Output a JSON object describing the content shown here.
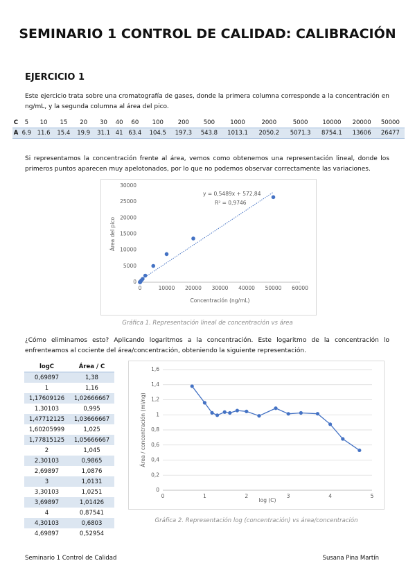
{
  "header": {
    "title": "SEMINARIO 1 CONTROL DE CALIDAD: CALIBRACIÓN"
  },
  "section": {
    "heading": "EJERCICIO 1",
    "paragraph1": "Este ejercicio trata sobre una cromatografía de gases, donde la primera columna corresponde a la concentración en ng/mL, y la segunda columna al área del pico.",
    "table1": {
      "rows": [
        [
          "C",
          "5",
          "10",
          "15",
          "20",
          "30",
          "40",
          "60",
          "100",
          "200",
          "500",
          "1000",
          "2000",
          "5000",
          "10000",
          "20000",
          "50000"
        ],
        [
          "A",
          "6.9",
          "11.6",
          "15.4",
          "19.9",
          "31.1",
          "41",
          "63.4",
          "104.5",
          "197.3",
          "543.8",
          "1013.1",
          "2050.2",
          "5071.3",
          "8754.1",
          "13606",
          "26477"
        ]
      ]
    },
    "paragraph2": "Si representamos la concentración frente al área, vemos como obtenemos una representación lineal, donde los primeros puntos aparecen muy apelotonados, por lo que no podemos observar correctamente las variaciones.",
    "caption1": "Gráfica 1. Representación lineal de concentración vs área",
    "paragraph3": "¿Cómo eliminamos esto? Aplicando logaritmos a la concentración. Este logaritmo de la concentración lo enfrenteamos al cociente del área/concentración, obteniendo la siguiente representación.",
    "table2": {
      "header": [
        "logC",
        "Área / C"
      ],
      "rows": [
        [
          "0,69897",
          "1,38"
        ],
        [
          "1",
          "1,16"
        ],
        [
          "1,17609126",
          "1,02666667"
        ],
        [
          "1,30103",
          "0,995"
        ],
        [
          "1,47712125",
          "1,03666667"
        ],
        [
          "1,60205999",
          "1,025"
        ],
        [
          "1,77815125",
          "1,05666667"
        ],
        [
          "2",
          "1,045"
        ],
        [
          "2,30103",
          "0,9865"
        ],
        [
          "2,69897",
          "1,0876"
        ],
        [
          "3",
          "1,0131"
        ],
        [
          "3,30103",
          "1,0251"
        ],
        [
          "3,69897",
          "1,01426"
        ],
        [
          "4",
          "0,87541"
        ],
        [
          "4,30103",
          "0,6803"
        ],
        [
          "4,69897",
          "0,52954"
        ]
      ]
    },
    "caption2": "Gráfica 2. Representación log (concentración) vs área/concentración"
  },
  "charts": [
    {
      "type": "scatter",
      "x_label": "Concentración (ng/mL)",
      "y_label": "Área del pico",
      "color": "#4472c4",
      "grid": false,
      "x": [
        5,
        10,
        15,
        20,
        30,
        40,
        60,
        100,
        200,
        500,
        1000,
        2000,
        5000,
        10000,
        20000,
        50000
      ],
      "values": [
        6.9,
        11.6,
        15.4,
        19.9,
        31.1,
        41,
        63.4,
        104.5,
        197.3,
        543.8,
        1013.1,
        2050.2,
        5071.3,
        8754.1,
        13606,
        26477
      ],
      "xlim": [
        0,
        60000
      ],
      "xticks": [
        0,
        10000,
        20000,
        30000,
        40000,
        50000,
        60000
      ],
      "ylim": [
        0,
        30000
      ],
      "yticks": [
        0,
        5000,
        10000,
        15000,
        20000,
        25000,
        30000
      ],
      "trendline": {
        "label": "y = 0,5489x + 572,84",
        "r2_label": "R² = 0,9746",
        "slope": 0.5489,
        "intercept": 572.84
      }
    },
    {
      "type": "line",
      "x_label": "log (C)",
      "y_label": "Área / concentración (ml/ng)",
      "color": "#4472c4",
      "grid": true,
      "x": [
        0.69897,
        1,
        1.17609126,
        1.30103,
        1.47712125,
        1.60205999,
        1.77815125,
        2,
        2.30103,
        2.69897,
        3,
        3.30103,
        3.69897,
        4,
        4.30103,
        4.69897
      ],
      "values": [
        1.38,
        1.16,
        1.02666667,
        0.995,
        1.03666667,
        1.025,
        1.05666667,
        1.045,
        0.9865,
        1.0876,
        1.0131,
        1.0251,
        1.01426,
        0.87541,
        0.6803,
        0.52954
      ],
      "xlim": [
        0,
        5
      ],
      "xticks": [
        0,
        1,
        2,
        3,
        4,
        5
      ],
      "ylim": [
        0,
        1.6
      ],
      "yticks": [
        0,
        {
          "value": 0.2,
          "label": "0,2"
        },
        {
          "value": 0.4,
          "label": "0,4"
        },
        {
          "value": 0.6,
          "label": "0,6"
        },
        {
          "value": 0.8,
          "label": "0,8"
        },
        1,
        {
          "value": 1.2,
          "label": "1,2"
        },
        {
          "value": 1.4,
          "label": "1,4"
        },
        {
          "value": 1.6,
          "label": "1,6"
        }
      ]
    }
  ],
  "footer": {
    "left": "Seminario 1 Control de Calidad",
    "right": "Susana Pina Martín"
  }
}
